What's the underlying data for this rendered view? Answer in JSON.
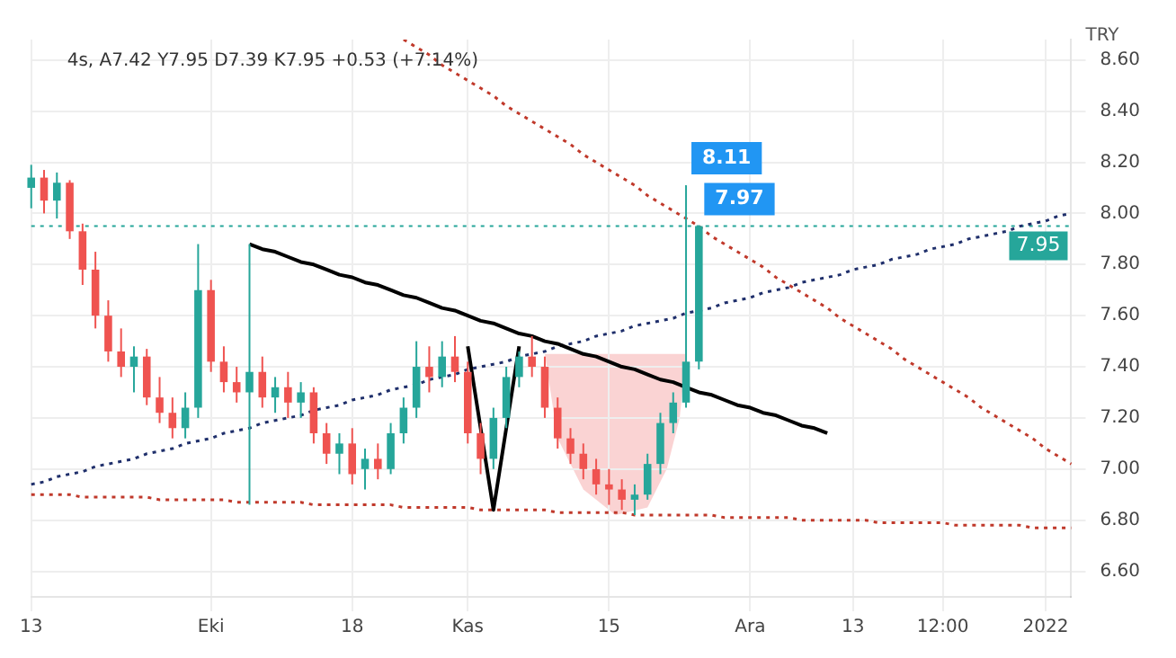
{
  "chart_data": {
    "type": "candlestick",
    "ylabel": "TRY",
    "annotations": [
      "4s, A7.42 Y7.95 D7.39 K7.95 +0.53 (+7.14%)",
      "8.11",
      "7.97"
    ],
    "categories": [
      "13",
      null,
      null,
      null,
      null,
      null,
      null,
      null,
      null,
      null,
      null,
      null,
      null,
      null,
      "Eki",
      null,
      null,
      null,
      null,
      null,
      null,
      null,
      null,
      null,
      null,
      "18",
      null,
      null,
      null,
      null,
      null,
      null,
      null,
      null,
      "Kas",
      null,
      null,
      null,
      null,
      null,
      null,
      null,
      null,
      null,
      null,
      "15",
      null,
      null,
      null,
      null,
      null,
      null,
      null,
      null,
      null,
      null,
      "Ara",
      null,
      null,
      null,
      null,
      null,
      null,
      null,
      "13",
      null,
      null,
      null,
      null,
      null,
      null,
      "12:00",
      null,
      null,
      null,
      null,
      null,
      null,
      null,
      "2022",
      null,
      null
    ],
    "ohlc": [
      [
        8.1,
        8.19,
        8.02,
        8.14
      ],
      [
        8.14,
        8.17,
        8.0,
        8.05
      ],
      [
        8.05,
        8.16,
        7.98,
        8.12
      ],
      [
        8.12,
        8.13,
        7.9,
        7.93
      ],
      [
        7.93,
        7.96,
        7.72,
        7.78
      ],
      [
        7.78,
        7.85,
        7.55,
        7.6
      ],
      [
        7.6,
        7.66,
        7.42,
        7.46
      ],
      [
        7.46,
        7.55,
        7.36,
        7.4
      ],
      [
        7.4,
        7.48,
        7.3,
        7.44
      ],
      [
        7.44,
        7.47,
        7.25,
        7.28
      ],
      [
        7.28,
        7.36,
        7.18,
        7.22
      ],
      [
        7.22,
        7.28,
        7.12,
        7.16
      ],
      [
        7.16,
        7.3,
        7.12,
        7.24
      ],
      [
        7.24,
        7.88,
        7.2,
        7.7
      ],
      [
        7.7,
        7.74,
        7.38,
        7.42
      ],
      [
        7.42,
        7.48,
        7.3,
        7.34
      ],
      [
        7.34,
        7.4,
        7.26,
        7.3
      ],
      [
        7.3,
        7.88,
        6.86,
        7.38
      ],
      [
        7.38,
        7.44,
        7.24,
        7.28
      ],
      [
        7.28,
        7.36,
        7.22,
        7.32
      ],
      [
        7.32,
        7.38,
        7.2,
        7.26
      ],
      [
        7.26,
        7.34,
        7.2,
        7.3
      ],
      [
        7.3,
        7.32,
        7.1,
        7.14
      ],
      [
        7.14,
        7.18,
        7.02,
        7.06
      ],
      [
        7.06,
        7.14,
        6.98,
        7.1
      ],
      [
        7.1,
        7.16,
        6.94,
        6.98
      ],
      [
        7.0,
        7.08,
        6.92,
        7.04
      ],
      [
        7.04,
        7.1,
        6.96,
        7.0
      ],
      [
        7.0,
        7.18,
        6.98,
        7.14
      ],
      [
        7.14,
        7.28,
        7.1,
        7.24
      ],
      [
        7.24,
        7.5,
        7.2,
        7.4
      ],
      [
        7.4,
        7.48,
        7.3,
        7.36
      ],
      [
        7.36,
        7.5,
        7.32,
        7.44
      ],
      [
        7.44,
        7.52,
        7.34,
        7.38
      ],
      [
        7.38,
        7.42,
        7.1,
        7.14
      ],
      [
        7.14,
        7.18,
        6.98,
        7.04
      ],
      [
        7.04,
        7.24,
        7.0,
        7.2
      ],
      [
        7.2,
        7.4,
        7.16,
        7.36
      ],
      [
        7.36,
        7.46,
        7.32,
        7.44
      ],
      [
        7.44,
        7.52,
        7.36,
        7.4
      ],
      [
        7.4,
        7.44,
        7.2,
        7.24
      ],
      [
        7.24,
        7.28,
        7.08,
        7.12
      ],
      [
        7.12,
        7.16,
        7.02,
        7.06
      ],
      [
        7.06,
        7.1,
        6.96,
        7.0
      ],
      [
        7.0,
        7.04,
        6.9,
        6.94
      ],
      [
        6.94,
        7.0,
        6.86,
        6.92
      ],
      [
        6.92,
        6.96,
        6.84,
        6.88
      ],
      [
        6.88,
        6.94,
        6.82,
        6.9
      ],
      [
        6.9,
        7.06,
        6.88,
        7.02
      ],
      [
        7.02,
        7.22,
        6.98,
        7.18
      ],
      [
        7.18,
        7.3,
        7.14,
        7.26
      ],
      [
        7.26,
        8.11,
        7.24,
        7.42
      ],
      [
        7.42,
        7.95,
        7.39,
        7.95
      ],
      null,
      null,
      null,
      null,
      null,
      null,
      null,
      null,
      null,
      null,
      null,
      null,
      null,
      null,
      null,
      null,
      null,
      null,
      null,
      null,
      null,
      null,
      null,
      null,
      null,
      null,
      null,
      null,
      null
    ],
    "colors": [
      "#26a69a",
      "#ef5350",
      "#26a69a",
      "#ef5350",
      "#ef5350",
      "#ef5350",
      "#ef5350",
      "#ef5350",
      "#26a69a",
      "#ef5350",
      "#ef5350",
      "#ef5350",
      "#26a69a",
      "#26a69a",
      "#ef5350",
      "#ef5350",
      "#ef5350",
      "#26a69a",
      "#ef5350",
      "#26a69a",
      "#ef5350",
      "#26a69a",
      "#ef5350",
      "#ef5350",
      "#26a69a",
      "#ef5350",
      "#26a69a",
      "#ef5350",
      "#26a69a",
      "#26a69a",
      "#26a69a",
      "#ef5350",
      "#26a69a",
      "#ef5350",
      "#ef5350",
      "#ef5350",
      "#26a69a",
      "#26a69a",
      "#26a69a",
      "#ef5350",
      "#ef5350",
      "#ef5350",
      "#ef5350",
      "#ef5350",
      "#ef5350",
      "#ef5350",
      "#ef5350",
      "#26a69a",
      "#26a69a",
      "#26a69a",
      "#26a69a",
      "#26a69a",
      "#26a69a",
      null,
      null,
      null,
      null,
      null,
      null,
      null,
      null,
      null,
      null,
      null,
      null,
      null,
      null,
      null,
      null,
      null,
      null,
      null,
      null,
      null,
      null,
      null,
      null,
      null,
      null,
      null,
      null,
      null
    ],
    "series": [
      {
        "type": "line",
        "color": "#000000",
        "line_style": "solid",
        "values": [
          null,
          null,
          null,
          null,
          null,
          null,
          null,
          null,
          null,
          null,
          null,
          null,
          null,
          null,
          null,
          null,
          null,
          7.88,
          7.86,
          7.85,
          7.83,
          7.81,
          7.8,
          7.78,
          7.76,
          7.75,
          7.73,
          7.72,
          7.7,
          7.68,
          7.67,
          7.65,
          7.63,
          7.62,
          7.6,
          7.58,
          7.57,
          7.55,
          7.53,
          7.52,
          7.5,
          7.49,
          7.47,
          7.45,
          7.44,
          7.42,
          7.4,
          7.39,
          7.37,
          7.35,
          7.34,
          7.32,
          7.3,
          7.29,
          7.27,
          7.25,
          7.24,
          7.22,
          7.21,
          7.19,
          7.17,
          7.16,
          7.14,
          null,
          null,
          null,
          null,
          null,
          null,
          null,
          null,
          null,
          null,
          null,
          null,
          null,
          null,
          null,
          null,
          null,
          null,
          null
        ]
      },
      {
        "type": "line",
        "color": "#000000",
        "line_style": "solid",
        "values": [
          null,
          null,
          null,
          null,
          null,
          null,
          null,
          null,
          null,
          null,
          null,
          null,
          null,
          null,
          null,
          null,
          null,
          null,
          null,
          null,
          null,
          null,
          null,
          null,
          null,
          null,
          null,
          null,
          null,
          null,
          null,
          null,
          null,
          null,
          7.48,
          7.16,
          6.84,
          7.16,
          7.48,
          null,
          null,
          null,
          null,
          null,
          null,
          null,
          null,
          null,
          null,
          null,
          null,
          null,
          null,
          null,
          null,
          null,
          null,
          null,
          null,
          null,
          null,
          null,
          null,
          null,
          null,
          null,
          null,
          null,
          null,
          null,
          null,
          null,
          null,
          null,
          null,
          null,
          null,
          null,
          null,
          null,
          null,
          null
        ]
      },
      {
        "type": "line",
        "color": "#1f2f6b",
        "line_style": "dotted",
        "values": [
          6.94,
          6.95,
          6.97,
          6.98,
          6.99,
          7.01,
          7.02,
          7.03,
          7.04,
          7.06,
          7.07,
          7.08,
          7.1,
          7.11,
          7.12,
          7.14,
          7.15,
          7.16,
          7.18,
          7.19,
          7.2,
          7.21,
          7.23,
          7.24,
          7.25,
          7.27,
          7.28,
          7.29,
          7.31,
          7.32,
          7.33,
          7.35,
          7.36,
          7.37,
          7.39,
          7.4,
          7.41,
          7.42,
          7.44,
          7.45,
          7.46,
          7.48,
          7.49,
          7.5,
          7.52,
          7.53,
          7.54,
          7.56,
          7.57,
          7.58,
          7.59,
          7.61,
          7.62,
          7.63,
          7.65,
          7.66,
          7.67,
          7.69,
          7.7,
          7.71,
          7.73,
          7.74,
          7.75,
          7.76,
          7.78,
          7.79,
          7.8,
          7.82,
          7.83,
          7.84,
          7.86,
          7.87,
          7.88,
          7.9,
          7.91,
          7.92,
          7.93,
          7.95,
          7.96,
          7.97,
          7.99,
          8.0
        ]
      },
      {
        "type": "line",
        "color": "#c0392b",
        "line_style": "dotted",
        "values": [
          null,
          null,
          null,
          null,
          null,
          null,
          null,
          null,
          null,
          null,
          null,
          null,
          null,
          null,
          null,
          null,
          null,
          null,
          null,
          null,
          null,
          null,
          null,
          null,
          null,
          null,
          null,
          null,
          null,
          8.68,
          8.65,
          8.62,
          8.58,
          8.55,
          8.52,
          8.49,
          8.46,
          8.42,
          8.39,
          8.36,
          8.33,
          8.3,
          8.27,
          8.23,
          8.2,
          8.17,
          8.14,
          8.11,
          8.07,
          8.04,
          8.01,
          7.98,
          7.95,
          7.91,
          7.88,
          7.85,
          7.82,
          7.79,
          7.75,
          7.72,
          7.69,
          7.66,
          7.63,
          7.59,
          7.56,
          7.53,
          7.5,
          7.47,
          7.43,
          7.4,
          7.37,
          7.34,
          7.31,
          7.28,
          7.24,
          7.21,
          7.18,
          7.15,
          7.12,
          7.08,
          7.05,
          7.02
        ]
      },
      {
        "type": "line",
        "color": "#c0392b",
        "line_style": "dotted",
        "values": [
          6.9,
          6.9,
          6.9,
          6.9,
          6.89,
          6.89,
          6.89,
          6.89,
          6.89,
          6.89,
          6.88,
          6.88,
          6.88,
          6.88,
          6.88,
          6.88,
          6.87,
          6.87,
          6.87,
          6.87,
          6.87,
          6.87,
          6.86,
          6.86,
          6.86,
          6.86,
          6.86,
          6.86,
          6.86,
          6.85,
          6.85,
          6.85,
          6.85,
          6.85,
          6.85,
          6.84,
          6.84,
          6.84,
          6.84,
          6.84,
          6.84,
          6.83,
          6.83,
          6.83,
          6.83,
          6.83,
          6.83,
          6.82,
          6.82,
          6.82,
          6.82,
          6.82,
          6.82,
          6.82,
          6.81,
          6.81,
          6.81,
          6.81,
          6.81,
          6.81,
          6.8,
          6.8,
          6.8,
          6.8,
          6.8,
          6.8,
          6.79,
          6.79,
          6.79,
          6.79,
          6.79,
          6.79,
          6.78,
          6.78,
          6.78,
          6.78,
          6.78,
          6.78,
          6.77,
          6.77,
          6.77,
          6.77
        ]
      }
    ],
    "ref_lines": [
      {
        "axis": "y",
        "value": 7.95,
        "label": "7.95",
        "color": "#26a69a",
        "line_style": "dotted"
      }
    ],
    "ylim": [
      6.5,
      8.68
    ],
    "yticks": [
      {
        "value": 6.6,
        "label": "6.60"
      },
      {
        "value": 6.8,
        "label": "6.80"
      },
      {
        "value": 7.0,
        "label": "7.00"
      },
      {
        "value": 7.2,
        "label": "7.20"
      },
      {
        "value": 7.4,
        "label": "7.40"
      },
      {
        "value": 7.6,
        "label": "7.60"
      },
      {
        "value": 7.8,
        "label": "7.80"
      },
      {
        "value": 8.0,
        "label": "8.00"
      },
      {
        "value": 8.2,
        "label": "8.20"
      },
      {
        "value": 8.4,
        "label": "8.40"
      },
      {
        "value": 8.6,
        "label": "8.60"
      }
    ],
    "grid": true,
    "legend": false
  }
}
